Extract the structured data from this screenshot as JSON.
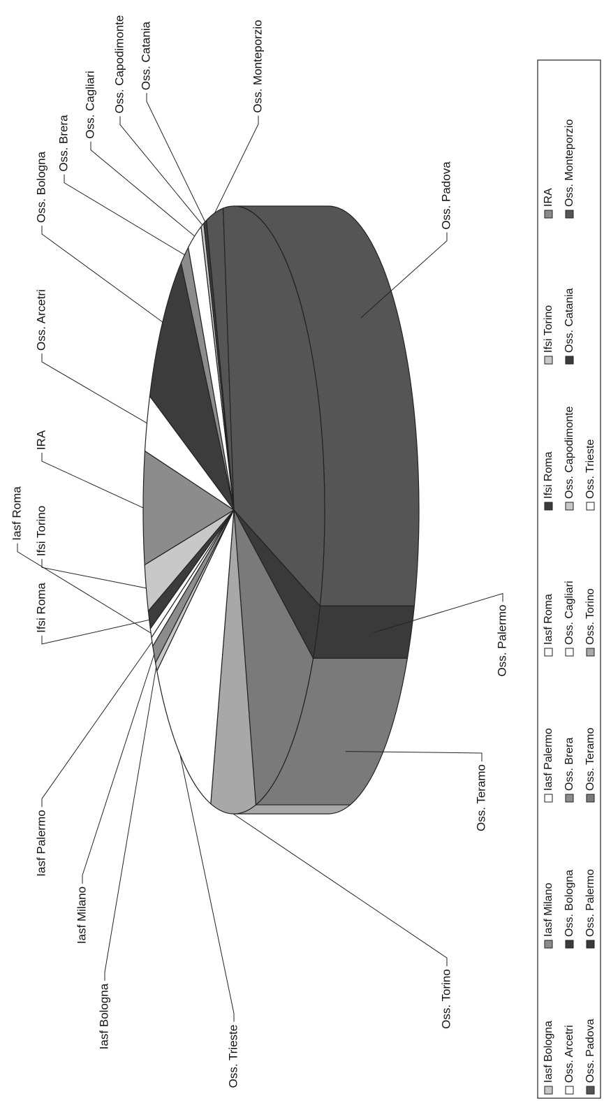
{
  "chart_data": {
    "type": "pie",
    "categories": [
      "Iasf Bologna",
      "Iasf Milano",
      "Iasf Palermo",
      "Iasf Roma",
      "Ifsi Roma",
      "Ifsi Torino",
      "IRA",
      "Oss. Arcetri",
      "Oss. Bologna",
      "Oss. Brera",
      "Oss. Cagliari",
      "Oss. Capodimonte",
      "Oss. Catania",
      "Oss. Monteporzio",
      "Oss. Padova",
      "Oss. Palermo",
      "Oss. Teramo",
      "Oss. Torino",
      "Oss. Trieste"
    ],
    "values": [
      0.5,
      1,
      0.5,
      0.5,
      1,
      2.5,
      6,
      3,
      9,
      1.5,
      2.5,
      0.5,
      0.5,
      3,
      32,
      3,
      13,
      8,
      12
    ],
    "colors": [
      "#c8c8c8",
      "#8c8c8c",
      "#ffffff",
      "#ffffff",
      "#3c3c3c",
      "#c8c8c8",
      "#8c8c8c",
      "#ffffff",
      "#3c3c3c",
      "#8c8c8c",
      "#ffffff",
      "#c8c8c8",
      "#3c3c3c",
      "#555555",
      "#555555",
      "#3a3a3a",
      "#7a7a7a",
      "#a8a8a8",
      "#ffffff"
    ],
    "legend": "bottom"
  }
}
